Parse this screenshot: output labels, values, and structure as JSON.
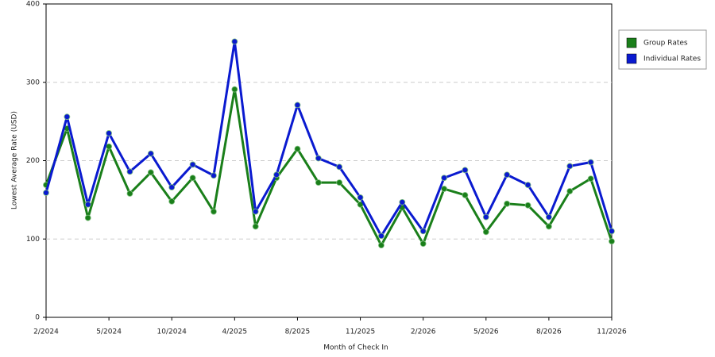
{
  "chart_data": {
    "type": "line",
    "x_label": "Month of Check In",
    "y_label": "Lowest Average Rate (USD)",
    "categories": [
      "2/2024",
      null,
      null,
      "5/2024",
      null,
      null,
      "10/2024",
      null,
      null,
      "4/2025",
      null,
      null,
      "8/2025",
      null,
      null,
      "11/2025",
      null,
      null,
      "2/2026",
      null,
      null,
      "5/2026",
      null,
      null,
      "8/2026",
      null,
      null,
      "11/2026"
    ],
    "series": [
      {
        "name": "Group Rates",
        "color": "#1a7f1a",
        "values": [
          169,
          241,
          127,
          218,
          158,
          185,
          148,
          178,
          135,
          291,
          116,
          178,
          215,
          172,
          172,
          144,
          92,
          140,
          94,
          164,
          156,
          109,
          145,
          143,
          116,
          161,
          177,
          97
        ]
      },
      {
        "name": "Individual Rates",
        "color": "#0a1ad0",
        "values": [
          159,
          256,
          144,
          235,
          186,
          209,
          166,
          195,
          181,
          352,
          135,
          182,
          271,
          203,
          192,
          153,
          104,
          147,
          110,
          178,
          188,
          128,
          182,
          169,
          128,
          193,
          198,
          110
        ]
      }
    ],
    "ylim": [
      0,
      400
    ],
    "yticks": [
      0,
      100,
      200,
      300,
      400
    ],
    "grid": true
  }
}
